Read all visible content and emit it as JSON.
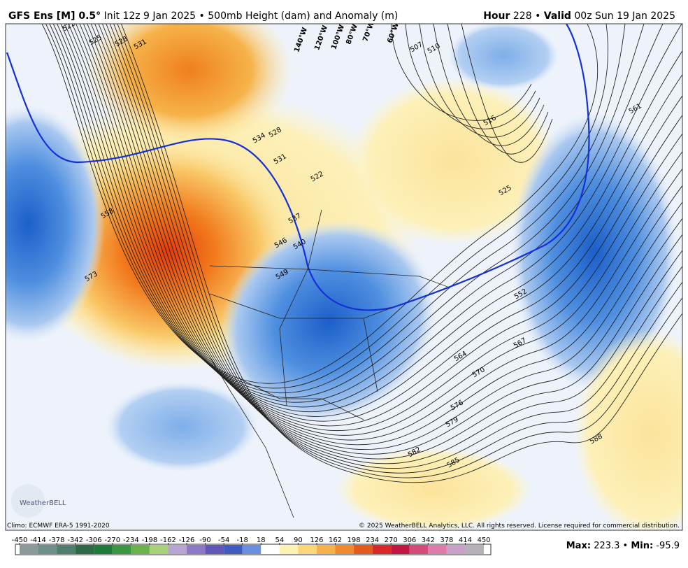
{
  "header": {
    "model": "GFS Ens [M] 0.5°",
    "init": "Init 12z 9 Jan 2025",
    "sep": "•",
    "product": "500mb Height (dam) and Anomaly (m)",
    "hour_label": "Hour",
    "hour": "228",
    "valid_label": "Valid",
    "valid": "00z Sun 19 Jan 2025"
  },
  "map": {
    "contour_labels": [
      "522",
      "525",
      "528",
      "531",
      "534",
      "528",
      "531",
      "522",
      "537",
      "540",
      "546",
      "549",
      "558",
      "573",
      "507",
      "510",
      "516",
      "525",
      "561",
      "552",
      "567",
      "564",
      "570",
      "576",
      "579",
      "582",
      "585",
      "588"
    ],
    "longitude_labels": [
      "140°W",
      "120°W",
      "100°W",
      "80°W",
      "70°W",
      "60°W"
    ],
    "logo": "WeatherBELL"
  },
  "footer": {
    "climo": "Climo: ECMWF ERA-5 1991-2020",
    "copyright": "© 2025 WeatherBELL Analytics, LLC. All rights reserved. License required for commercial distribution.",
    "max_label": "Max:",
    "max": "223.3",
    "sep": "•",
    "min_label": "Min:",
    "min": "-95.9"
  },
  "colorbar": {
    "ticks": [
      -450,
      -414,
      -378,
      -342,
      -306,
      -270,
      -234,
      -198,
      -162,
      -126,
      -90,
      -54,
      -18,
      18,
      54,
      90,
      126,
      162,
      198,
      234,
      270,
      306,
      342,
      378,
      414,
      450
    ]
  }
}
